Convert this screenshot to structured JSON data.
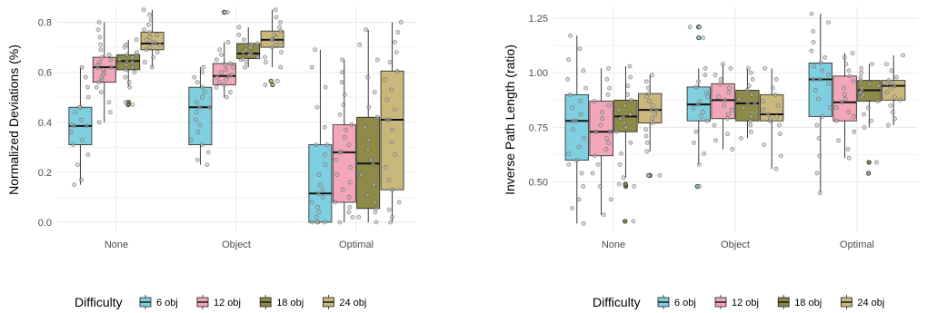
{
  "colors": {
    "6 obj": "#7fcfe0",
    "12 obj": "#f2a7b8",
    "18 obj": "#8e8a47",
    "24 obj": "#c9b77c",
    "grid": "#ebebeb",
    "point_fill": "#b8b8b8"
  },
  "legend": {
    "title": "Difficulty",
    "entries": [
      "6 obj",
      "12 obj",
      "18 obj",
      "24 obj"
    ],
    "placement": "bottom"
  },
  "chart_data": [
    {
      "type": "box",
      "xlabel": "",
      "ylabel": "Normalized Deviations (%)",
      "categories": [
        "None",
        "Object",
        "Optimal"
      ],
      "ylim": [
        -0.04,
        0.86
      ],
      "yticks": [
        0.0,
        0.2,
        0.4,
        0.6,
        0.8
      ],
      "ytick_labels": [
        "0.0",
        "0.2",
        "0.4",
        "0.6",
        "0.8"
      ],
      "grid": true,
      "series": [
        {
          "name": "6 obj",
          "boxes": [
            {
              "category": "None",
              "whisker_low": 0.15,
              "q1": 0.31,
              "median": 0.385,
              "q3": 0.46,
              "whisker_high": 0.62,
              "outliers": [],
              "points": [
                0.15,
                0.17,
                0.23,
                0.27,
                0.31,
                0.33,
                0.36,
                0.385,
                0.385,
                0.39,
                0.41,
                0.44,
                0.46,
                0.46,
                0.5,
                0.54,
                0.58,
                0.62
              ]
            },
            {
              "category": "Object",
              "whisker_low": 0.23,
              "q1": 0.31,
              "median": 0.46,
              "q3": 0.54,
              "whisker_high": 0.62,
              "outliers": [],
              "points": [
                0.23,
                0.25,
                0.28,
                0.31,
                0.33,
                0.36,
                0.39,
                0.41,
                0.44,
                0.46,
                0.46,
                0.48,
                0.5,
                0.52,
                0.54,
                0.56,
                0.58,
                0.6,
                0.62
              ]
            },
            {
              "category": "Optimal",
              "whisker_low": 0.0,
              "q1": 0.0,
              "median": 0.115,
              "q3": 0.31,
              "whisker_high": 0.69,
              "outliers": [],
              "points": [
                0.0,
                0.0,
                0.0,
                0.0,
                0.02,
                0.04,
                0.06,
                0.08,
                0.1,
                0.115,
                0.13,
                0.15,
                0.19,
                0.23,
                0.27,
                0.31,
                0.31,
                0.38,
                0.46,
                0.54,
                0.62,
                0.69
              ]
            }
          ]
        },
        {
          "name": "12 obj",
          "boxes": [
            {
              "category": "None",
              "whisker_low": 0.4,
              "q1": 0.56,
              "median": 0.62,
              "q3": 0.66,
              "whisker_high": 0.8,
              "outliers": [],
              "points": [
                0.4,
                0.44,
                0.48,
                0.52,
                0.54,
                0.56,
                0.57,
                0.58,
                0.59,
                0.6,
                0.61,
                0.62,
                0.62,
                0.63,
                0.64,
                0.65,
                0.66,
                0.67,
                0.69,
                0.71,
                0.74,
                0.77,
                0.8
              ]
            },
            {
              "category": "Object",
              "whisker_low": 0.5,
              "q1": 0.55,
              "median": 0.585,
              "q3": 0.635,
              "whisker_high": 0.72,
              "outliers": [
                0.84,
                0.84
              ],
              "points": [
                0.5,
                0.52,
                0.54,
                0.55,
                0.56,
                0.57,
                0.58,
                0.585,
                0.59,
                0.6,
                0.61,
                0.62,
                0.63,
                0.635,
                0.65,
                0.67,
                0.69,
                0.72
              ]
            },
            {
              "category": "Optimal",
              "whisker_low": 0.0,
              "q1": 0.08,
              "median": 0.28,
              "q3": 0.39,
              "whisker_high": 0.65,
              "outliers": [],
              "points": [
                0.0,
                0.02,
                0.04,
                0.06,
                0.08,
                0.1,
                0.13,
                0.16,
                0.19,
                0.22,
                0.25,
                0.28,
                0.28,
                0.31,
                0.34,
                0.37,
                0.39,
                0.43,
                0.47,
                0.51,
                0.56,
                0.6,
                0.65
              ]
            }
          ]
        },
        {
          "name": "18 obj",
          "boxes": [
            {
              "category": "None",
              "whisker_low": 0.54,
              "q1": 0.61,
              "median": 0.645,
              "q3": 0.67,
              "whisker_high": 0.73,
              "outliers": [
                0.48,
                0.47
              ],
              "points": [
                0.54,
                0.56,
                0.58,
                0.6,
                0.61,
                0.62,
                0.63,
                0.64,
                0.645,
                0.65,
                0.66,
                0.67,
                0.67,
                0.68,
                0.7,
                0.71,
                0.73
              ]
            },
            {
              "category": "Object",
              "whisker_low": 0.62,
              "q1": 0.655,
              "median": 0.675,
              "q3": 0.715,
              "whisker_high": 0.78,
              "outliers": [],
              "points": [
                0.62,
                0.64,
                0.65,
                0.655,
                0.66,
                0.67,
                0.675,
                0.68,
                0.69,
                0.7,
                0.71,
                0.715,
                0.73,
                0.75,
                0.78
              ]
            },
            {
              "category": "Optimal",
              "whisker_low": 0.0,
              "q1": 0.055,
              "median": 0.235,
              "q3": 0.42,
              "whisker_high": 0.77,
              "outliers": [],
              "points": [
                0.0,
                0.02,
                0.04,
                0.055,
                0.08,
                0.11,
                0.15,
                0.19,
                0.235,
                0.25,
                0.29,
                0.33,
                0.38,
                0.42,
                0.46,
                0.52,
                0.58,
                0.65,
                0.71,
                0.77
              ]
            }
          ]
        },
        {
          "name": "24 obj",
          "boxes": [
            {
              "category": "None",
              "whisker_low": 0.62,
              "q1": 0.69,
              "median": 0.715,
              "q3": 0.76,
              "whisker_high": 0.85,
              "outliers": [],
              "points": [
                0.62,
                0.64,
                0.66,
                0.68,
                0.69,
                0.7,
                0.71,
                0.715,
                0.72,
                0.73,
                0.74,
                0.75,
                0.76,
                0.77,
                0.79,
                0.81,
                0.83,
                0.85
              ]
            },
            {
              "category": "Object",
              "whisker_low": 0.62,
              "q1": 0.7,
              "median": 0.73,
              "q3": 0.765,
              "whisker_high": 0.85,
              "outliers": [
                0.565,
                0.55
              ],
              "points": [
                0.62,
                0.64,
                0.66,
                0.68,
                0.7,
                0.71,
                0.72,
                0.73,
                0.73,
                0.74,
                0.75,
                0.765,
                0.78,
                0.8,
                0.82,
                0.85
              ]
            },
            {
              "category": "Optimal",
              "whisker_low": 0.0,
              "q1": 0.13,
              "median": 0.41,
              "q3": 0.605,
              "whisker_high": 0.8,
              "outliers": [],
              "points": [
                0.0,
                0.02,
                0.05,
                0.08,
                0.13,
                0.17,
                0.22,
                0.27,
                0.32,
                0.37,
                0.41,
                0.41,
                0.45,
                0.49,
                0.53,
                0.57,
                0.605,
                0.64,
                0.68,
                0.72,
                0.76,
                0.8
              ]
            }
          ]
        }
      ]
    },
    {
      "type": "box",
      "xlabel": "",
      "ylabel": "Inverse Path Length (ratio)",
      "categories": [
        "None",
        "Object",
        "Optimal"
      ],
      "ylim": [
        0.27,
        1.3
      ],
      "yticks": [
        0.5,
        0.75,
        1.0,
        1.25
      ],
      "ytick_labels": [
        "0.50",
        "0.75",
        "1.00",
        "1.25"
      ],
      "grid": true,
      "series": [
        {
          "name": "6 obj",
          "boxes": [
            {
              "category": "None",
              "whisker_low": 0.31,
              "q1": 0.6,
              "median": 0.78,
              "q3": 0.9,
              "whisker_high": 1.17,
              "outliers": [],
              "points": [
                0.31,
                0.38,
                0.42,
                0.48,
                0.54,
                0.58,
                0.6,
                0.63,
                0.66,
                0.7,
                0.74,
                0.78,
                0.78,
                0.81,
                0.84,
                0.87,
                0.9,
                0.93,
                0.97,
                1.01,
                1.06,
                1.11,
                1.17
              ]
            },
            {
              "category": "Object",
              "whisker_low": 0.58,
              "q1": 0.78,
              "median": 0.855,
              "q3": 0.935,
              "whisker_high": 1.02,
              "outliers": [
                1.21,
                1.21,
                1.16,
                0.48
              ],
              "points": [
                0.58,
                0.63,
                0.68,
                0.73,
                0.78,
                0.8,
                0.82,
                0.84,
                0.855,
                0.87,
                0.89,
                0.91,
                0.935,
                0.96,
                0.99,
                1.02
              ]
            },
            {
              "category": "Optimal",
              "whisker_low": 0.45,
              "q1": 0.8,
              "median": 0.97,
              "q3": 1.045,
              "whisker_high": 1.27,
              "outliers": [],
              "points": [
                0.45,
                0.54,
                0.62,
                0.7,
                0.76,
                0.8,
                0.84,
                0.88,
                0.92,
                0.95,
                0.97,
                0.97,
                0.99,
                1.01,
                1.03,
                1.045,
                1.07,
                1.1,
                1.14,
                1.19,
                1.23,
                1.27
              ]
            }
          ]
        },
        {
          "name": "12 obj",
          "boxes": [
            {
              "category": "None",
              "whisker_low": 0.35,
              "q1": 0.62,
              "median": 0.73,
              "q3": 0.87,
              "whisker_high": 1.02,
              "outliers": [],
              "points": [
                0.35,
                0.42,
                0.48,
                0.54,
                0.58,
                0.62,
                0.65,
                0.68,
                0.7,
                0.73,
                0.73,
                0.76,
                0.79,
                0.82,
                0.85,
                0.87,
                0.9,
                0.93,
                0.97,
                1.02
              ]
            },
            {
              "category": "Object",
              "whisker_low": 0.65,
              "q1": 0.79,
              "median": 0.875,
              "q3": 0.95,
              "whisker_high": 1.04,
              "outliers": [],
              "points": [
                0.65,
                0.69,
                0.72,
                0.76,
                0.79,
                0.81,
                0.83,
                0.85,
                0.875,
                0.89,
                0.91,
                0.93,
                0.95,
                0.97,
                0.99,
                1.02,
                1.04
              ]
            },
            {
              "category": "Optimal",
              "whisker_low": 0.61,
              "q1": 0.78,
              "median": 0.865,
              "q3": 0.985,
              "whisker_high": 1.09,
              "outliers": [],
              "points": [
                0.61,
                0.65,
                0.69,
                0.73,
                0.78,
                0.8,
                0.82,
                0.84,
                0.865,
                0.88,
                0.9,
                0.93,
                0.96,
                0.985,
                1.01,
                1.04,
                1.07,
                1.09
              ]
            }
          ]
        },
        {
          "name": "18 obj",
          "boxes": [
            {
              "category": "None",
              "whisker_low": 0.52,
              "q1": 0.73,
              "median": 0.8,
              "q3": 0.875,
              "whisker_high": 1.03,
              "outliers": [
                0.48,
                0.49,
                0.32
              ],
              "points": [
                0.52,
                0.58,
                0.63,
                0.68,
                0.73,
                0.75,
                0.77,
                0.79,
                0.8,
                0.81,
                0.83,
                0.85,
                0.875,
                0.9,
                0.94,
                0.98,
                1.03
              ]
            },
            {
              "category": "Object",
              "whisker_low": 0.7,
              "q1": 0.78,
              "median": 0.86,
              "q3": 0.92,
              "whisker_high": 1.02,
              "outliers": [],
              "points": [
                0.7,
                0.73,
                0.76,
                0.78,
                0.8,
                0.82,
                0.84,
                0.86,
                0.86,
                0.88,
                0.9,
                0.92,
                0.94,
                0.97,
                1.0,
                1.02
              ]
            },
            {
              "category": "Optimal",
              "whisker_low": 0.75,
              "q1": 0.87,
              "median": 0.92,
              "q3": 0.965,
              "whisker_high": 1.04,
              "outliers": [
                0.59,
                0.54
              ],
              "points": [
                0.75,
                0.78,
                0.81,
                0.84,
                0.87,
                0.89,
                0.9,
                0.91,
                0.92,
                0.93,
                0.94,
                0.95,
                0.965,
                0.98,
                1.0,
                1.02,
                1.04
              ]
            }
          ]
        },
        {
          "name": "24 obj",
          "boxes": [
            {
              "category": "None",
              "whisker_low": 0.64,
              "q1": 0.77,
              "median": 0.83,
              "q3": 0.905,
              "whisker_high": 0.99,
              "outliers": [
                0.53,
                0.53
              ],
              "points": [
                0.64,
                0.68,
                0.71,
                0.74,
                0.77,
                0.79,
                0.81,
                0.83,
                0.83,
                0.85,
                0.87,
                0.89,
                0.905,
                0.93,
                0.96,
                0.99
              ]
            },
            {
              "category": "Object",
              "whisker_low": 0.56,
              "q1": 0.78,
              "median": 0.81,
              "q3": 0.9,
              "whisker_high": 1.02,
              "outliers": [],
              "points": [
                0.56,
                0.62,
                0.67,
                0.72,
                0.76,
                0.78,
                0.79,
                0.8,
                0.81,
                0.83,
                0.85,
                0.87,
                0.9,
                0.93,
                0.97,
                1.02
              ]
            },
            {
              "category": "Optimal",
              "whisker_low": 0.76,
              "q1": 0.875,
              "median": 0.94,
              "q3": 0.965,
              "whisker_high": 1.08,
              "outliers": [],
              "points": [
                0.76,
                0.79,
                0.82,
                0.85,
                0.875,
                0.89,
                0.91,
                0.93,
                0.94,
                0.95,
                0.955,
                0.965,
                0.98,
                1.01,
                1.04,
                1.08
              ]
            }
          ]
        }
      ]
    }
  ]
}
